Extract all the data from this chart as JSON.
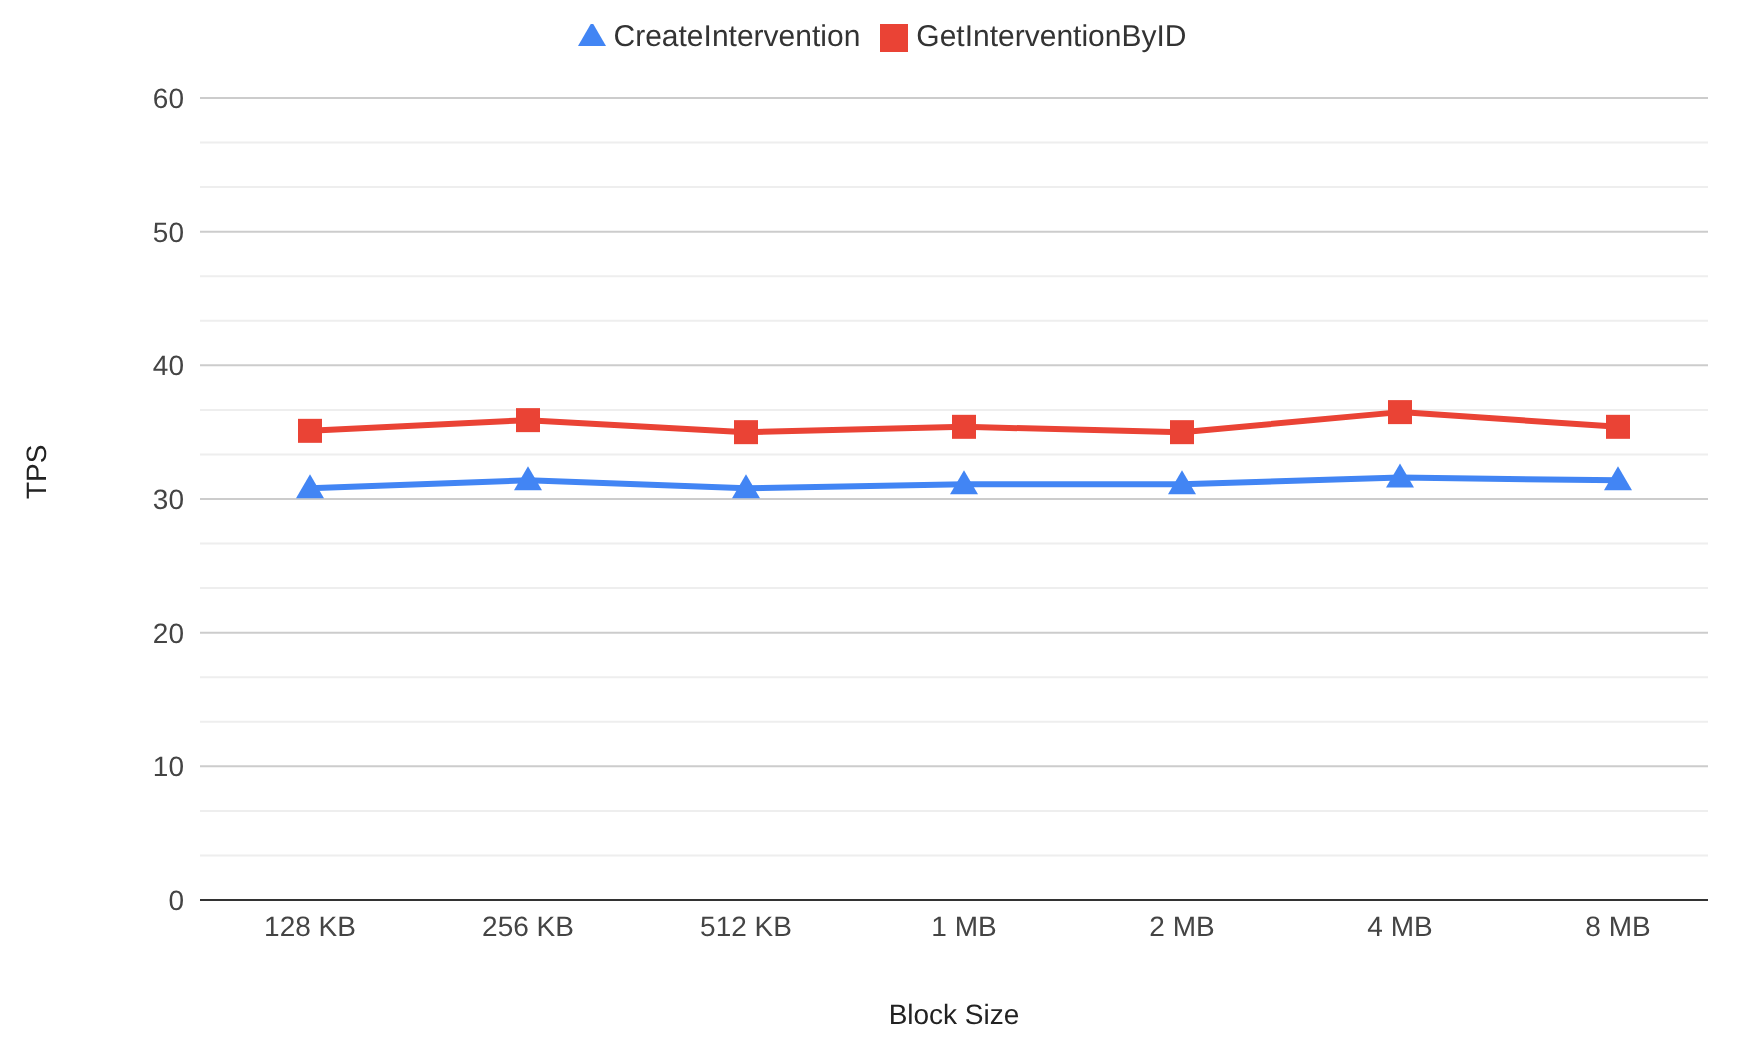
{
  "chart_data": {
    "type": "line",
    "xlabel": "Block Size",
    "ylabel": "TPS",
    "categories": [
      "128 KB",
      "256 KB",
      "512 KB",
      "1 MB",
      "2 MB",
      "4 MB",
      "8 MB"
    ],
    "series": [
      {
        "name": "CreateIntervention",
        "color": "#4285f4",
        "marker": "triangle",
        "values": [
          30.8,
          31.4,
          30.8,
          31.1,
          31.1,
          31.6,
          31.4
        ]
      },
      {
        "name": "GetInterventionByID",
        "color": "#ea4335",
        "marker": "square",
        "values": [
          35.1,
          35.9,
          35.0,
          35.4,
          35.0,
          36.5,
          35.4
        ]
      }
    ],
    "ylim": [
      0,
      60
    ],
    "yticks": [
      0,
      10,
      20,
      30,
      40,
      50,
      60
    ],
    "grid": "y",
    "legend": "top"
  }
}
